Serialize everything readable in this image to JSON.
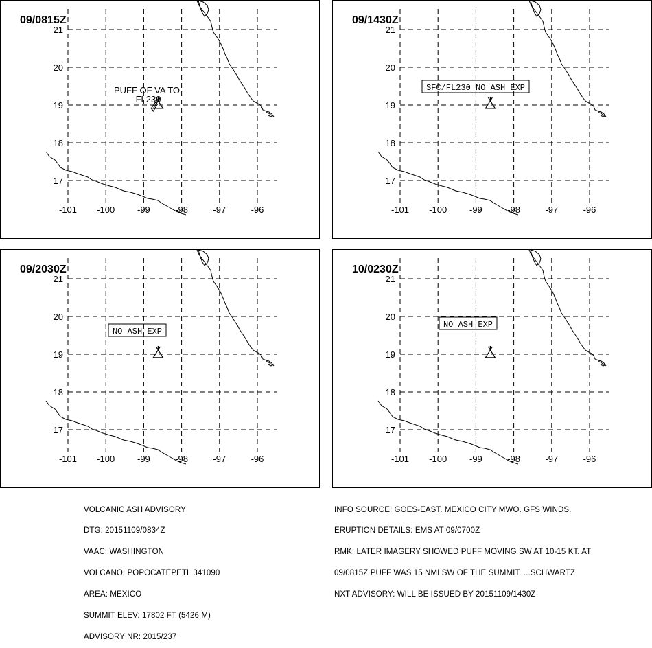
{
  "panels": [
    {
      "time": "09/0815Z",
      "label_lines": [
        "PUFF OF VA TO",
        "FL230"
      ],
      "boxed": false,
      "puff": true
    },
    {
      "time": "09/1430Z",
      "label_lines": [
        "SFC/FL230 NO ASH EXP"
      ],
      "boxed": true,
      "puff": false
    },
    {
      "time": "09/2030Z",
      "label_lines": [
        "NO ASH EXP"
      ],
      "boxed": true,
      "puff": false
    },
    {
      "time": "10/0230Z",
      "label_lines": [
        "NO ASH EXP"
      ],
      "boxed": true,
      "puff": false
    }
  ],
  "axes": {
    "lon_ticks": [
      "-101",
      "-100",
      "-99",
      "-98",
      "-97",
      "-96"
    ],
    "lat_ticks": [
      "21",
      "20",
      "19",
      "18",
      "17"
    ]
  },
  "volcano": {
    "lon": -98.62,
    "lat": 19.02
  },
  "advisory": {
    "left_lines": [
      "VOLCANIC ASH ADVISORY",
      "DTG: 20151109/0834Z",
      "VAAC: WASHINGTON",
      "VOLCANO: POPOCATEPETL 341090",
      "AREA: MEXICO",
      "SUMMIT ELEV: 17802 FT (5426 M)",
      "ADVISORY NR: 2015/237"
    ],
    "right_lines": [
      "INFO SOURCE: GOES-EAST. MEXICO CITY MWO. GFS WINDS.",
      "ERUPTION DETAILS: EMS AT 09/0700Z",
      "RMK: LATER IMAGERY SHOWED PUFF MOVING SW AT 10-15 KT. AT",
      "09/0815Z PUFF WAS 15 NMI SW OF THE SUMMIT. ...SCHWARTZ",
      "NXT ADVISORY: WILL BE ISSUED BY 20151109/1430Z"
    ]
  }
}
